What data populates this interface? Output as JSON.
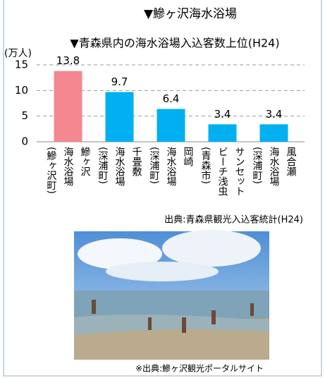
{
  "header": {
    "title": "▼鰺ヶ沢海水浴場"
  },
  "chart_data": {
    "type": "bar",
    "title": "▼青森県内の海水浴場入込客数上位(H24)",
    "y_label": "(万人)",
    "categories": [
      "鰺ヶ沢\n海水浴場\n(鰺ヶ沢町)",
      "千畳敷\n海水浴場\n(深浦町)",
      "岡崎\n海水浴場\n(深浦町)",
      "サンセット\nビーチ浅虫\n(青森市)",
      "風合瀬\n海水浴場\n(深浦町)"
    ],
    "values": [
      13.8,
      9.7,
      6.4,
      3.4,
      3.4
    ],
    "colors": [
      "#f4878f",
      "#00b0f0",
      "#00b0f0",
      "#00b0f0",
      "#00b0f0"
    ],
    "ylim": [
      0,
      15
    ],
    "yticks": [
      0,
      5,
      10,
      15
    ],
    "grid": true,
    "source": "出典:青森県観光入込客統計(H24)"
  },
  "photo": {
    "caption": "※出典:鰺ヶ沢観光ポータルサイト"
  }
}
